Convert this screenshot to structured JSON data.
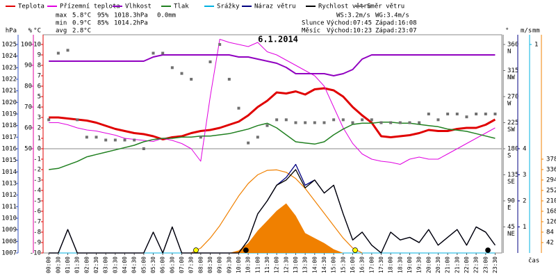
{
  "chart_data": {
    "type": "line",
    "title": "6.1.2014",
    "x_label": "čas",
    "x": [
      0,
      0.5,
      1,
      1.5,
      2,
      2.5,
      3,
      3.5,
      4,
      4.5,
      5,
      5.5,
      6,
      6.5,
      7,
      7.5,
      8,
      8.5,
      9,
      9.5,
      10,
      10.5,
      11,
      11.5,
      12,
      12.5,
      13,
      13.5,
      14,
      14.5,
      15,
      15.5,
      16,
      16.5,
      17,
      17.5,
      18,
      18.5,
      19,
      19.5,
      20,
      20.5,
      21,
      21.5,
      22,
      22.5,
      23,
      23.5
    ],
    "xlim": [
      -0.3,
      23.85
    ],
    "xticks": [
      {
        "value": 0,
        "label": "00:00"
      },
      {
        "value": 0.5,
        "label": "00:30"
      },
      {
        "value": 1,
        "label": "01:00"
      },
      {
        "value": 1.5,
        "label": "01:30"
      },
      {
        "value": 2,
        "label": "02:00"
      },
      {
        "value": 2.5,
        "label": "02:30"
      },
      {
        "value": 3,
        "label": "03:00"
      },
      {
        "value": 3.5,
        "label": "03:30"
      },
      {
        "value": 4,
        "label": "04:00"
      },
      {
        "value": 4.5,
        "label": "04:30"
      },
      {
        "value": 5,
        "label": "05:00"
      },
      {
        "value": 5.5,
        "label": "05:30"
      },
      {
        "value": 6,
        "label": "06:00"
      },
      {
        "value": 6.5,
        "label": "06:30"
      },
      {
        "value": 7,
        "label": "07:00"
      },
      {
        "value": 7.5,
        "label": "07:30"
      },
      {
        "value": 8,
        "label": "08:00"
      },
      {
        "value": 8.5,
        "label": "08:30"
      },
      {
        "value": 9,
        "label": "09:00"
      },
      {
        "value": 9.5,
        "label": "09:30"
      },
      {
        "value": 10,
        "label": "10:00"
      },
      {
        "value": 10.5,
        "label": "10:30"
      },
      {
        "value": 11,
        "label": "11:00"
      },
      {
        "value": 11.5,
        "label": "11:30"
      },
      {
        "value": 12,
        "label": "12:00"
      },
      {
        "value": 12.5,
        "label": "12:30"
      },
      {
        "value": 13,
        "label": "13:00"
      },
      {
        "value": 13.5,
        "label": "13:30"
      },
      {
        "value": 14,
        "label": "14:00"
      },
      {
        "value": 14.5,
        "label": "14:30"
      },
      {
        "value": 15,
        "label": "15:00"
      },
      {
        "value": 15.5,
        "label": "15:30"
      },
      {
        "value": 16,
        "label": "16:00"
      },
      {
        "value": 16.5,
        "label": "16:30"
      },
      {
        "value": 17,
        "label": "17:00"
      },
      {
        "value": 17.5,
        "label": "17:30"
      },
      {
        "value": 18,
        "label": "18:00"
      },
      {
        "value": 18.5,
        "label": "18:30"
      },
      {
        "value": 19,
        "label": "19:00"
      },
      {
        "value": 19.5,
        "label": "19:30"
      },
      {
        "value": 20,
        "label": "20:00"
      },
      {
        "value": 20.5,
        "label": "20:30"
      },
      {
        "value": 21,
        "label": "21:00"
      },
      {
        "value": 21.5,
        "label": "21:30"
      },
      {
        "value": 22,
        "label": "22:00"
      },
      {
        "value": 22.5,
        "label": "22:30"
      },
      {
        "value": 23,
        "label": "23:00"
      },
      {
        "value": 23.5,
        "label": "23:30"
      }
    ],
    "axes": {
      "pressure": {
        "label": "hPa",
        "color": "#3050c0",
        "ylim": [
          1007,
          1025
        ],
        "yticks": [
          1007,
          1008,
          1009,
          1010,
          1011,
          1012,
          1013,
          1014,
          1015,
          1016,
          1017,
          1018,
          1019,
          1020,
          1021,
          1022,
          1023,
          1024,
          1025
        ]
      },
      "humidity": {
        "label": "%",
        "color": "#e000a0",
        "ylim": [
          0,
          100
        ],
        "yticks": [
          50,
          60,
          70,
          80,
          90,
          100
        ]
      },
      "temp": {
        "label": "°C",
        "color": "#e00000",
        "ylim": [
          -10,
          10
        ],
        "yticks": [
          -10,
          -9,
          -8,
          -7,
          -6,
          -5,
          -4,
          -3,
          -2,
          -1,
          0,
          1,
          2,
          3,
          4,
          5,
          6,
          7,
          8,
          9,
          10
        ]
      },
      "direction": {
        "label": "°",
        "color": "#707070",
        "ylim": [
          0,
          360
        ],
        "yticks": [
          45,
          90,
          135,
          180,
          225,
          270,
          315,
          360
        ],
        "tick_names": [
          "NE",
          "E",
          "SE",
          "S",
          "SW",
          "W",
          "NW",
          "N"
        ]
      },
      "wind": {
        "label": "m/s",
        "color": "#000080",
        "ylim": [
          0,
          8
        ],
        "yticks": [
          1,
          2,
          3,
          4
        ]
      },
      "rain": {
        "label": "mm",
        "color": "#00b0e0",
        "ylim": [
          0,
          1
        ],
        "yticks": [
          1
        ]
      },
      "radiation": {
        "color": "#f08000",
        "ylim": [
          0,
          840
        ],
        "yticks": [
          42,
          84,
          126,
          168,
          210,
          252,
          294,
          336,
          378
        ]
      }
    },
    "series": [
      {
        "name": "Teplota",
        "color": "#e00000",
        "axis": "temp",
        "values": [
          3.0,
          3.0,
          2.9,
          2.8,
          2.7,
          2.5,
          2.2,
          1.9,
          1.7,
          1.5,
          1.4,
          1.2,
          0.9,
          1.1,
          1.2,
          1.5,
          1.7,
          1.8,
          2.0,
          2.3,
          2.6,
          3.2,
          4.0,
          4.6,
          5.4,
          5.3,
          5.5,
          5.2,
          5.7,
          5.8,
          5.6,
          5.0,
          4.0,
          3.2,
          2.5,
          1.2,
          1.1,
          1.2,
          1.3,
          1.5,
          1.8,
          1.7,
          1.7,
          1.9,
          2.0,
          2.0,
          2.3,
          2.8
        ]
      },
      {
        "name": "Přízemní teplota",
        "color": "#e000e0",
        "axis": "temp",
        "values": [
          2.5,
          2.5,
          2.3,
          2.0,
          1.8,
          1.7,
          1.5,
          1.3,
          1.0,
          0.9,
          0.8,
          0.7,
          1.0,
          0.8,
          0.5,
          0.0,
          -1.2,
          5.0,
          10.5,
          10.2,
          10.0,
          9.8,
          10.2,
          9.3,
          9.0,
          8.5,
          8.0,
          7.5,
          7.0,
          6.0,
          4.0,
          2.0,
          0.5,
          -0.5,
          -1.0,
          -1.2,
          -1.3,
          -1.5,
          -1.0,
          -0.8,
          -1.0,
          -1.0,
          -0.5,
          0.0,
          0.5,
          1.0,
          1.5,
          2.0
        ]
      },
      {
        "name": "Vlhkost",
        "color": "#9000c0",
        "axis": "humidity",
        "values": [
          92,
          92,
          92,
          92,
          92,
          92,
          92,
          92,
          92,
          92,
          92,
          94,
          95,
          95,
          95,
          95,
          95,
          95,
          95,
          95,
          94,
          94,
          93,
          92,
          91,
          89,
          86,
          86,
          86,
          86,
          85,
          86,
          88,
          93,
          95,
          95,
          95,
          95,
          95,
          95,
          95,
          95,
          95,
          95,
          95,
          95,
          95,
          95
        ]
      },
      {
        "name": "Tlak",
        "color": "#208020",
        "axis": "pressure",
        "values": [
          1014.2,
          1014.3,
          1014.6,
          1014.9,
          1015.3,
          1015.5,
          1015.7,
          1015.9,
          1016.1,
          1016.3,
          1016.6,
          1016.8,
          1016.9,
          1016.9,
          1017.0,
          1017.0,
          1017.1,
          1017.1,
          1017.2,
          1017.3,
          1017.5,
          1017.7,
          1018.0,
          1018.2,
          1017.8,
          1017.2,
          1016.6,
          1016.5,
          1016.4,
          1016.6,
          1017.2,
          1017.7,
          1018.1,
          1018.2,
          1018.2,
          1018.3,
          1018.3,
          1018.2,
          1018.2,
          1018.1,
          1018.0,
          1017.9,
          1017.7,
          1017.6,
          1017.5,
          1017.3,
          1017.1,
          1016.9
        ]
      },
      {
        "name": "Srážky",
        "color": "#00b0e0",
        "axis": "rain",
        "values": [
          0,
          0,
          0,
          0,
          0,
          0,
          0,
          0,
          0,
          0,
          0,
          0,
          0,
          0,
          0,
          0,
          0,
          0,
          0,
          0,
          0,
          0,
          0,
          0,
          0,
          0,
          0,
          0,
          0,
          0,
          0,
          0,
          0,
          0,
          0,
          0,
          0,
          0,
          0,
          0,
          0,
          0,
          0,
          0,
          0,
          0,
          0,
          0
        ]
      },
      {
        "color": "#f08000",
        "axis": "radiation",
        "style": "area",
        "values": [
          null,
          null,
          null,
          null,
          null,
          null,
          null,
          null,
          null,
          null,
          null,
          null,
          null,
          null,
          null,
          null,
          null,
          null,
          null,
          0,
          10,
          40,
          90,
          130,
          170,
          200,
          150,
          80,
          60,
          40,
          15,
          0,
          null,
          null,
          null,
          null,
          null,
          null,
          null,
          null,
          null,
          null,
          null,
          null,
          null,
          null,
          null,
          null
        ]
      },
      {
        "color": "#f08000",
        "axis": "radiation",
        "values": [
          null,
          null,
          null,
          null,
          null,
          null,
          null,
          null,
          null,
          null,
          null,
          null,
          null,
          null,
          null,
          0,
          20,
          60,
          110,
          170,
          230,
          280,
          315,
          333,
          335,
          325,
          300,
          260,
          210,
          160,
          110,
          60,
          20,
          0,
          null,
          null,
          null,
          null,
          null,
          null,
          null,
          null,
          null,
          null,
          null,
          null,
          null,
          null
        ]
      },
      {
        "name": "Náraz větru",
        "color": "#000080",
        "axis": "wind",
        "values": [
          0,
          0,
          0.9,
          0,
          0,
          0,
          0,
          0,
          0,
          0,
          0,
          0.8,
          0,
          1.0,
          0,
          0,
          0,
          0,
          0,
          0,
          0,
          0.5,
          1.5,
          2.0,
          2.6,
          2.9,
          3.4,
          2.6,
          2.8,
          2.3,
          2.6,
          1.5,
          0.5,
          0.8,
          0.3,
          0,
          0.8,
          0.5,
          0.6,
          0.4,
          0.9,
          0.3,
          0.6,
          0.9,
          0.3,
          1.0,
          0.8,
          0.3
        ]
      },
      {
        "name": "Rychlost větru",
        "color": "#000000",
        "axis": "wind",
        "values": [
          0,
          0,
          0.9,
          0,
          0,
          0,
          0,
          0,
          0,
          0,
          0,
          0.8,
          0,
          1.0,
          0,
          0,
          0,
          0,
          0,
          0,
          0,
          0.5,
          1.5,
          2.0,
          2.6,
          2.8,
          3.2,
          2.5,
          2.8,
          2.3,
          2.6,
          1.5,
          0.5,
          0.8,
          0.3,
          0,
          0.8,
          0.5,
          0.6,
          0.4,
          0.9,
          0.3,
          0.6,
          0.9,
          0.3,
          1.0,
          0.8,
          0.3
        ]
      },
      {
        "name": "Směr větru",
        "color": "#707070",
        "axis": "direction",
        "style": "points",
        "values": [
          230,
          345,
          350,
          230,
          200,
          200,
          195,
          195,
          195,
          195,
          180,
          345,
          345,
          320,
          310,
          300,
          200,
          330,
          360,
          300,
          250,
          190,
          200,
          220,
          230,
          230,
          225,
          225,
          225,
          225,
          230,
          230,
          225,
          230,
          230,
          225,
          225,
          225,
          225,
          225,
          240,
          230,
          240,
          240,
          235,
          240,
          240,
          240
        ]
      }
    ],
    "events": [
      {
        "x": 7.75,
        "color": "#ffff00"
      },
      {
        "x": 16.13,
        "color": "#ffff00"
      },
      {
        "x": 10.38,
        "color": "#000000"
      },
      {
        "x": 23.12,
        "color": "#000000"
      }
    ],
    "stats": [
      {
        "label": "max",
        "temp": "5.8°C",
        "hum": "95%",
        "press": "1018.3hPa",
        "rain": "0.0mm"
      },
      {
        "label": "min",
        "temp": "0.9°C",
        "hum": "85%",
        "press": "1014.2hPa"
      },
      {
        "label": "avg",
        "temp": "2.8°C"
      }
    ],
    "info": {
      "ws": "WS:3.2m/s",
      "wg": "WG:3.4m/s",
      "sun": "Slunce",
      "sunrise": "Východ:07:45",
      "sunset": "Západ:16:08",
      "moon": "Měsíc",
      "moonrise": "Východ:10:23",
      "moonset": "Západ:23:07"
    }
  }
}
